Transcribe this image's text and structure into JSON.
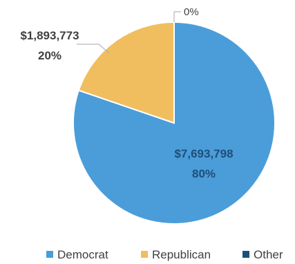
{
  "chart_data": {
    "type": "pie",
    "title": "",
    "series": [
      {
        "name": "Democrat",
        "value": 7693798,
        "value_label": "$7,693,798",
        "percent_label": "80%",
        "color": "#4A9DD9"
      },
      {
        "name": "Republican",
        "value": 1893773,
        "value_label": "$1,893,773",
        "percent_label": "20%",
        "color": "#F0BE5E"
      },
      {
        "name": "Other",
        "value": 0,
        "value_label": "",
        "percent_label": "0%",
        "color": "#1F4E79"
      }
    ],
    "legend": {
      "position": "bottom",
      "entries": [
        "Democrat",
        "Republican",
        "Other"
      ]
    },
    "label_colors": {
      "inside": "#1F4E79",
      "outside": "#404040"
    }
  }
}
